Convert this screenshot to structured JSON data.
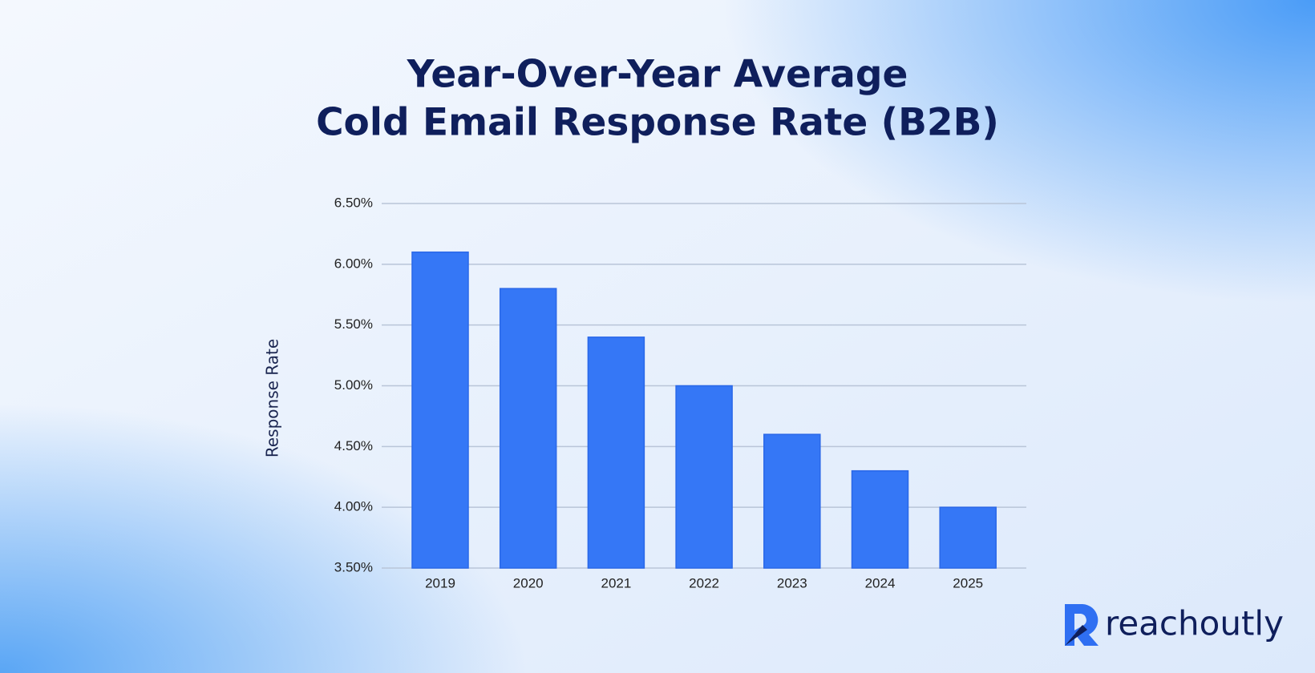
{
  "chart_data": {
    "type": "bar",
    "title": [
      "Year-Over-Year Average",
      "Cold Email Response Rate (B2B)"
    ],
    "y_label": "Response Rate",
    "categories": [
      "2019",
      "2020",
      "2021",
      "2022",
      "2023",
      "2024",
      "2025"
    ],
    "values": [
      6.1,
      5.8,
      5.4,
      5.0,
      4.6,
      4.3,
      4.0
    ],
    "color": "#3577f6",
    "ylim": [
      3.5,
      6.5
    ],
    "yticks": [
      {
        "value": 3.5,
        "label": "3.50%"
      },
      {
        "value": 4.0,
        "label": "4.00%"
      },
      {
        "value": 4.5,
        "label": "4.50%"
      },
      {
        "value": 5.0,
        "label": "5.00%"
      },
      {
        "value": 5.5,
        "label": "5.50%"
      },
      {
        "value": 6.0,
        "label": "6.00%"
      },
      {
        "value": 6.5,
        "label": "6.50%"
      }
    ],
    "grid": true
  },
  "brand": "reachoutly"
}
